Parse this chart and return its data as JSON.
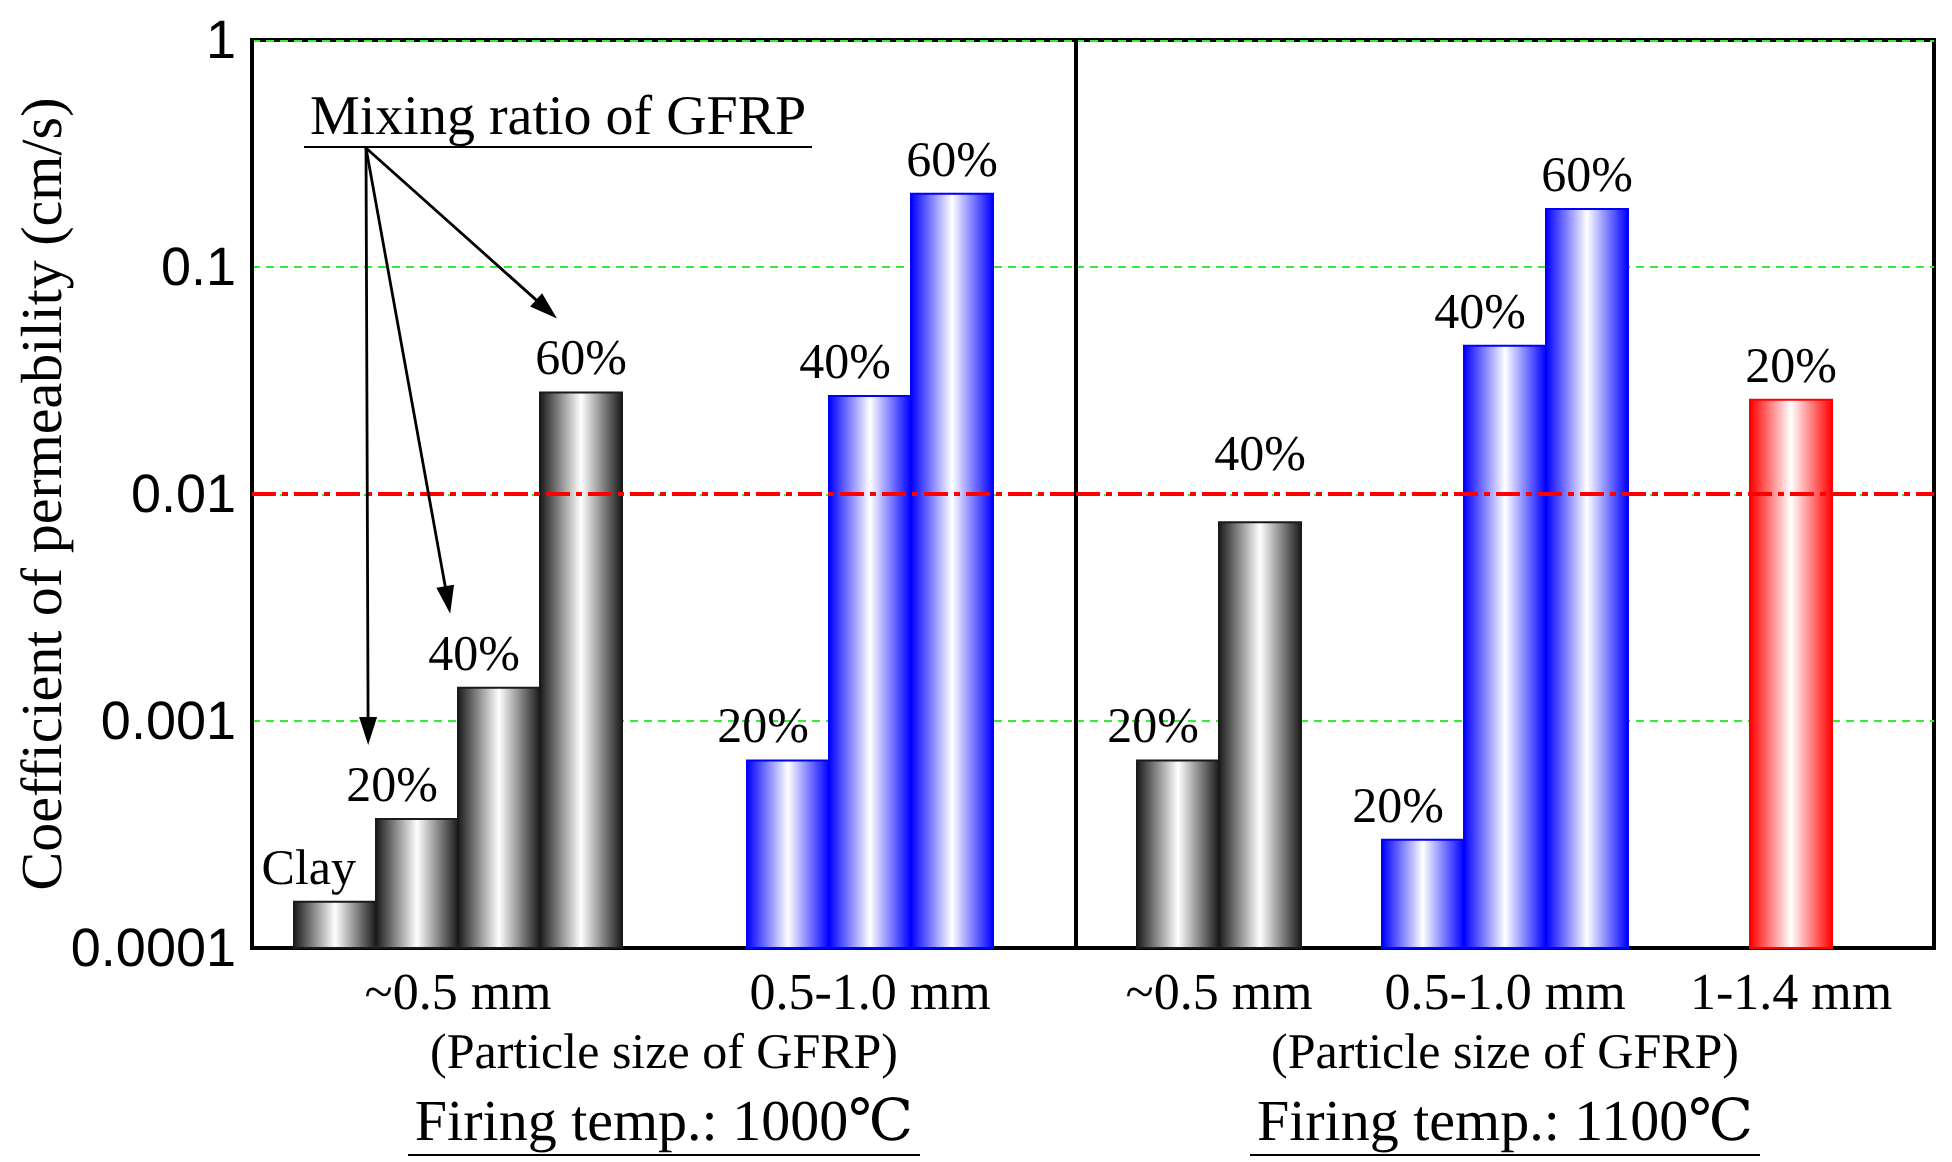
{
  "chart_data": [
    {
      "type": "bar",
      "title": "Firing temp.: 1000℃",
      "xlabel": "(Particle size of GFRP)",
      "ylabel": "Coefficient of permeability (cm/s)",
      "annotations": [
        "Mixing ratio of GFRP"
      ],
      "categories": [
        "~0.5 mm",
        "0.5-1.0 mm"
      ],
      "series": [
        {
          "name": "Clay",
          "values": [
            0.00016,
            null
          ],
          "colors": [
            "#1a1a1a",
            null
          ]
        },
        {
          "name": "20%",
          "values": [
            0.00037,
            0.00067
          ],
          "colors": [
            "#1a1a1a",
            "#0000ff"
          ]
        },
        {
          "name": "40%",
          "values": [
            0.0014,
            0.027
          ],
          "colors": [
            "#1a1a1a",
            "#0000ff"
          ]
        },
        {
          "name": "60%",
          "values": [
            0.028,
            0.21
          ],
          "colors": [
            "#1a1a1a",
            "#0000ff"
          ]
        }
      ],
      "log": true,
      "ylim": [
        0.0001,
        1
      ],
      "yticks": [
        0.0001,
        0.001,
        0.01,
        0.1,
        1
      ],
      "grid": "y",
      "ref_lines": [
        {
          "axis": "y",
          "value": 0.01,
          "color": "#ff0000",
          "line_style": "dashdot"
        }
      ]
    },
    {
      "type": "bar",
      "title": "Firing temp.: 1100℃",
      "xlabel": "(Particle size of GFRP)",
      "categories": [
        "~0.5 mm",
        "0.5-1.0 mm",
        "1-1.4 mm"
      ],
      "series": [
        {
          "name": "20%",
          "values": [
            0.00067,
            0.0003,
            0.026
          ],
          "colors": [
            "#1a1a1a",
            "#0000ff",
            "#ff0000"
          ]
        },
        {
          "name": "40%",
          "values": [
            0.0075,
            0.045,
            null
          ],
          "colors": [
            "#1a1a1a",
            "#0000ff",
            null
          ]
        },
        {
          "name": "60%",
          "values": [
            null,
            0.18,
            null
          ],
          "colors": [
            null,
            "#0000ff",
            null
          ]
        }
      ],
      "log": true,
      "ylim": [
        0.0001,
        1
      ],
      "yticks": [
        0.0001,
        0.001,
        0.01,
        0.1,
        1
      ],
      "grid": "y",
      "tick_labels": "x",
      "ref_lines": [
        {
          "axis": "y",
          "value": 0.01,
          "color": "#ff0000",
          "line_style": "dashdot"
        }
      ]
    }
  ]
}
